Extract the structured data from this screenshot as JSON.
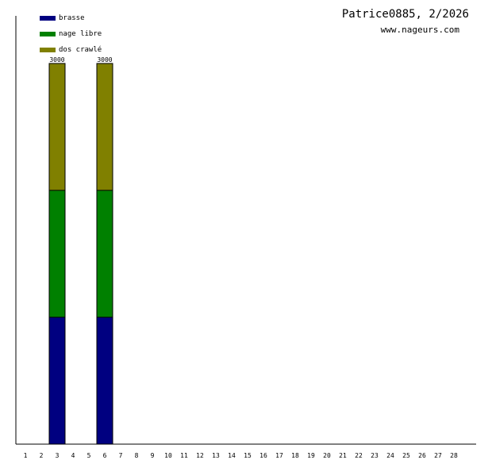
{
  "chart_data": {
    "type": "bar",
    "stacked": true,
    "title": "Patrice0885, 2/2026",
    "subtitle": "www.nageurs.com",
    "categories": [
      "1",
      "2",
      "3",
      "4",
      "5",
      "6",
      "7",
      "8",
      "9",
      "10",
      "11",
      "12",
      "13",
      "14",
      "15",
      "16",
      "17",
      "18",
      "19",
      "20",
      "21",
      "22",
      "23",
      "24",
      "25",
      "26",
      "27",
      "28"
    ],
    "series": [
      {
        "name": "brasse",
        "color": "#000080",
        "values": [
          0,
          0,
          1000,
          0,
          0,
          1000,
          0,
          0,
          0,
          0,
          0,
          0,
          0,
          0,
          0,
          0,
          0,
          0,
          0,
          0,
          0,
          0,
          0,
          0,
          0,
          0,
          0,
          0
        ]
      },
      {
        "name": "nage libre",
        "color": "#008000",
        "values": [
          0,
          0,
          1000,
          0,
          0,
          1000,
          0,
          0,
          0,
          0,
          0,
          0,
          0,
          0,
          0,
          0,
          0,
          0,
          0,
          0,
          0,
          0,
          0,
          0,
          0,
          0,
          0,
          0
        ]
      },
      {
        "name": "dos crawlé",
        "color": "#808000",
        "values": [
          0,
          0,
          1000,
          0,
          0,
          1000,
          0,
          0,
          0,
          0,
          0,
          0,
          0,
          0,
          0,
          0,
          0,
          0,
          0,
          0,
          0,
          0,
          0,
          0,
          0,
          0,
          0,
          0
        ]
      }
    ],
    "totals": [
      0,
      0,
      3000,
      0,
      0,
      3000,
      0,
      0,
      0,
      0,
      0,
      0,
      0,
      0,
      0,
      0,
      0,
      0,
      0,
      0,
      0,
      0,
      0,
      0,
      0,
      0,
      0,
      0
    ],
    "ylim": [
      0,
      3000
    ],
    "legend_position": "top-left",
    "grid": false
  }
}
